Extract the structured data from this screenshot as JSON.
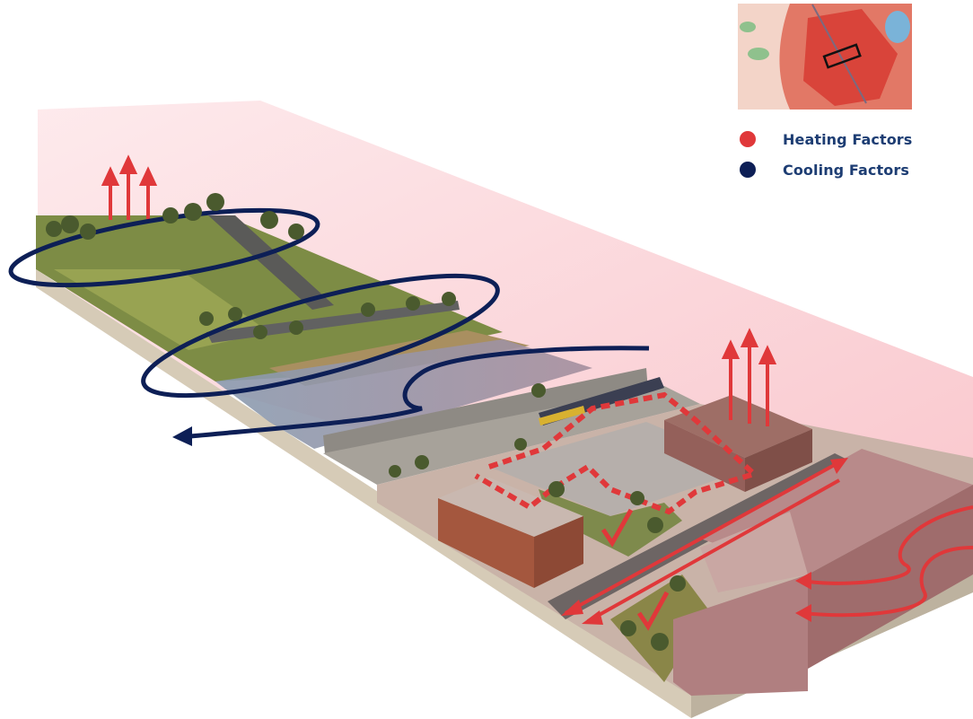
{
  "legend": {
    "items": [
      {
        "label": "Heating Factors",
        "color": "#e0383a"
      },
      {
        "label": "Cooling Factors",
        "color": "#0d1f56"
      }
    ]
  },
  "colors": {
    "heat": "#e0383a",
    "cool": "#0d1f56",
    "heat_haze": "#f9c6cb",
    "base_edge": "#d8ccb8"
  },
  "icons": {
    "inset": "heat-island-inset-map",
    "up": "heat-rising-arrow",
    "flow": "wind-flow-arrow"
  }
}
